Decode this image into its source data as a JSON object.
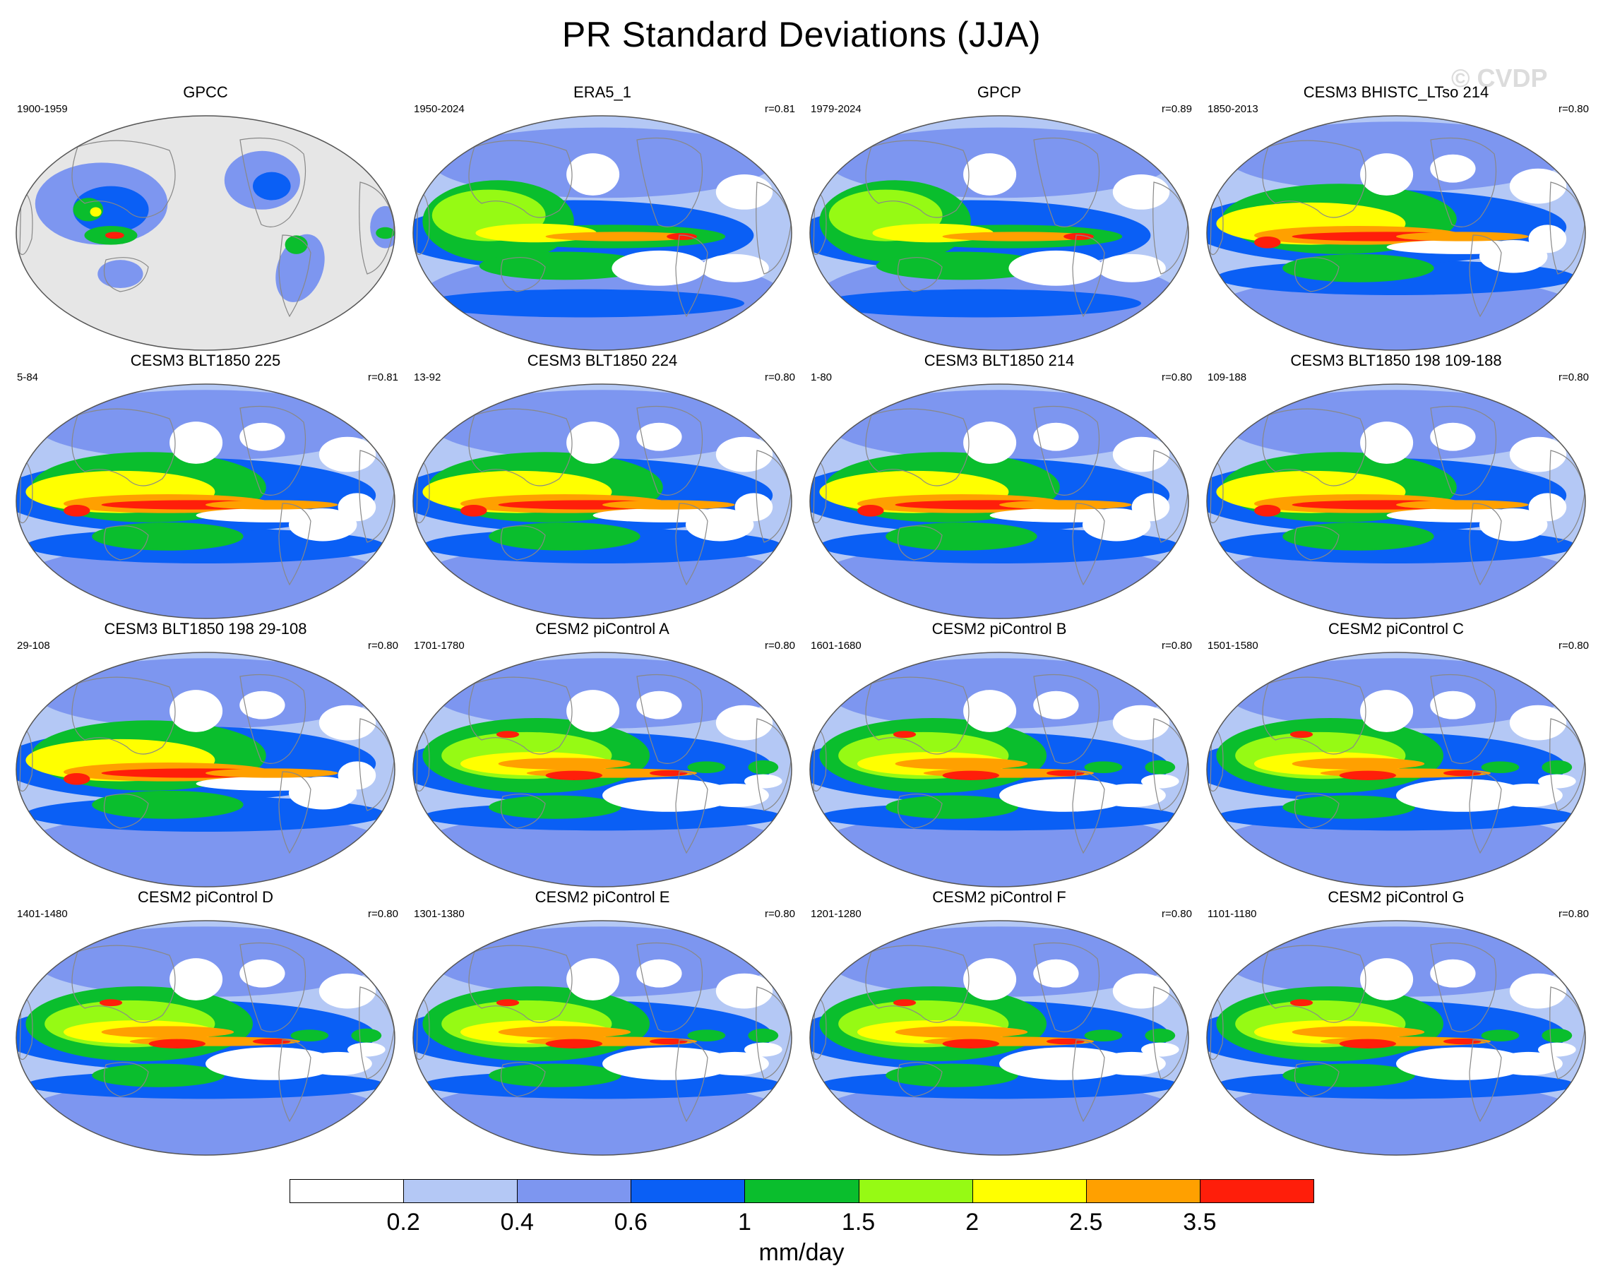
{
  "title": "PR Standard Deviations (JJA)",
  "watermark": "© CVDP",
  "panels": [
    {
      "title": "GPCC",
      "years": "1900-1959",
      "r": "",
      "kind": "obs_land"
    },
    {
      "title": "ERA5_1",
      "years": "1950-2024",
      "r": "r=0.81",
      "kind": "obs"
    },
    {
      "title": "GPCP",
      "years": "1979-2024",
      "r": "r=0.89",
      "kind": "obs"
    },
    {
      "title": "CESM3 BHISTC_LTso 214",
      "years": "1850-2013",
      "r": "r=0.80",
      "kind": "cesm3"
    },
    {
      "title": "CESM3 BLT1850 225",
      "years": "5-84",
      "r": "r=0.81",
      "kind": "cesm3"
    },
    {
      "title": "CESM3 BLT1850 224",
      "years": "13-92",
      "r": "r=0.80",
      "kind": "cesm3"
    },
    {
      "title": "CESM3 BLT1850 214",
      "years": "1-80",
      "r": "r=0.80",
      "kind": "cesm3"
    },
    {
      "title": "CESM3 BLT1850 198 109-188",
      "years": "109-188",
      "r": "r=0.80",
      "kind": "cesm3"
    },
    {
      "title": "CESM3 BLT1850 198 29-108",
      "years": "29-108",
      "r": "r=0.80",
      "kind": "cesm3"
    },
    {
      "title": "CESM2 piControl A",
      "years": "1701-1780",
      "r": "r=0.80",
      "kind": "cesm2"
    },
    {
      "title": "CESM2 piControl B",
      "years": "1601-1680",
      "r": "r=0.80",
      "kind": "cesm2"
    },
    {
      "title": "CESM2 piControl C",
      "years": "1501-1580",
      "r": "r=0.80",
      "kind": "cesm2"
    },
    {
      "title": "CESM2 piControl D",
      "years": "1401-1480",
      "r": "r=0.80",
      "kind": "cesm2"
    },
    {
      "title": "CESM2 piControl E",
      "years": "1301-1380",
      "r": "r=0.80",
      "kind": "cesm2"
    },
    {
      "title": "CESM2 piControl F",
      "years": "1201-1280",
      "r": "r=0.80",
      "kind": "cesm2"
    },
    {
      "title": "CESM2 piControl G",
      "years": "1101-1180",
      "r": "r=0.80",
      "kind": "cesm2"
    }
  ],
  "colorbar": {
    "colors": [
      "#ffffff",
      "#b4c8f5",
      "#7d96f0",
      "#6e8ce6",
      "#0a5ff5",
      "#0abe2d",
      "#96fa14",
      "#ffff00",
      "#ffa000",
      "#ff1e0a"
    ],
    "tick_labels": [
      "0.2",
      "0.4",
      "0.6",
      "1",
      "1.5",
      "2",
      "2.5",
      "3.5"
    ],
    "units": "mm/day"
  },
  "palette": {
    "land_mask": "#e6e6e6",
    "coast": "#888888",
    "white": "#ffffff",
    "pale_blue": "#b4c8f5",
    "light_blue": "#7d96f0",
    "mid_blue": "#6e8ce6",
    "blue": "#0a5ff5",
    "green": "#0abe2d",
    "lime": "#96fa14",
    "yellow": "#ffff00",
    "orange": "#ffa000",
    "red": "#ff1e0a"
  }
}
